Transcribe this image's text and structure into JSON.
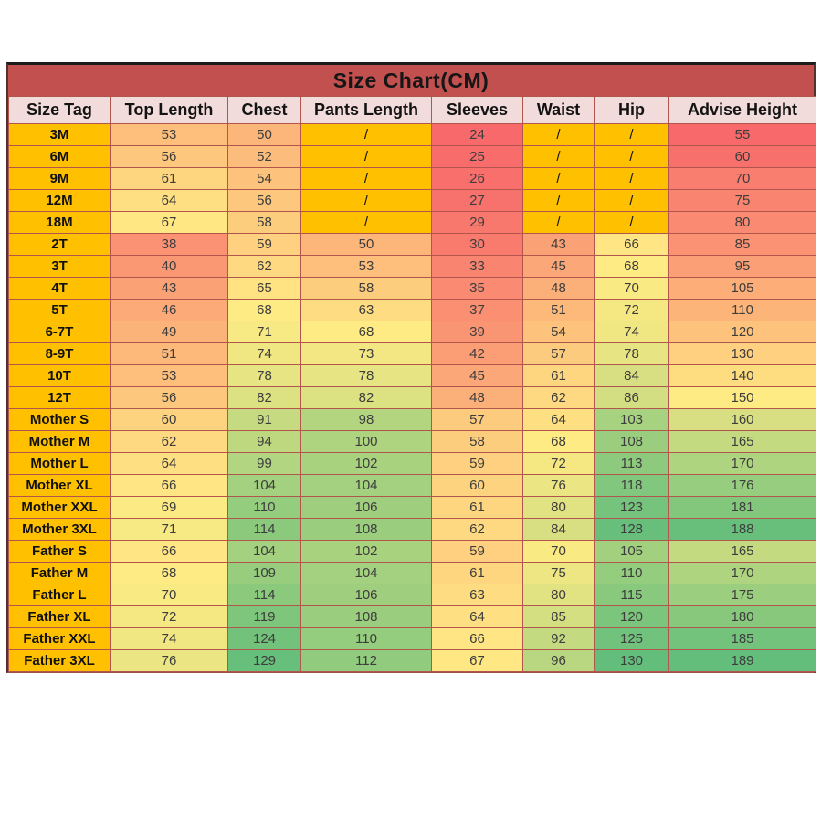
{
  "chart_data": {
    "type": "table",
    "title": "Size Chart(CM)",
    "columns": [
      "Size Tag",
      "Top Length",
      "Chest",
      "Pants Length",
      "Sleeves",
      "Waist",
      "Hip",
      "Advise Height"
    ],
    "rows": [
      [
        "3M",
        "53",
        "50",
        "/",
        "24",
        "/",
        "/",
        "55"
      ],
      [
        "6M",
        "56",
        "52",
        "/",
        "25",
        "/",
        "/",
        "60"
      ],
      [
        "9M",
        "61",
        "54",
        "/",
        "26",
        "/",
        "/",
        "70"
      ],
      [
        "12M",
        "64",
        "56",
        "/",
        "27",
        "/",
        "/",
        "75"
      ],
      [
        "18M",
        "67",
        "58",
        "/",
        "29",
        "/",
        "/",
        "80"
      ],
      [
        "2T",
        "38",
        "59",
        "50",
        "30",
        "43",
        "66",
        "85"
      ],
      [
        "3T",
        "40",
        "62",
        "53",
        "33",
        "45",
        "68",
        "95"
      ],
      [
        "4T",
        "43",
        "65",
        "58",
        "35",
        "48",
        "70",
        "105"
      ],
      [
        "5T",
        "46",
        "68",
        "63",
        "37",
        "51",
        "72",
        "110"
      ],
      [
        "6-7T",
        "49",
        "71",
        "68",
        "39",
        "54",
        "74",
        "120"
      ],
      [
        "8-9T",
        "51",
        "74",
        "73",
        "42",
        "57",
        "78",
        "130"
      ],
      [
        "10T",
        "53",
        "78",
        "78",
        "45",
        "61",
        "84",
        "140"
      ],
      [
        "12T",
        "56",
        "82",
        "82",
        "48",
        "62",
        "86",
        "150"
      ],
      [
        "Mother S",
        "60",
        "91",
        "98",
        "57",
        "64",
        "103",
        "160"
      ],
      [
        "Mother M",
        "62",
        "94",
        "100",
        "58",
        "68",
        "108",
        "165"
      ],
      [
        "Mother L",
        "64",
        "99",
        "102",
        "59",
        "72",
        "113",
        "170"
      ],
      [
        "Mother XL",
        "66",
        "104",
        "104",
        "60",
        "76",
        "118",
        "176"
      ],
      [
        "Mother XXL",
        "69",
        "110",
        "106",
        "61",
        "80",
        "123",
        "181"
      ],
      [
        "Mother 3XL",
        "71",
        "114",
        "108",
        "62",
        "84",
        "128",
        "188"
      ],
      [
        "Father S",
        "66",
        "104",
        "102",
        "59",
        "70",
        "105",
        "165"
      ],
      [
        "Father M",
        "68",
        "109",
        "104",
        "61",
        "75",
        "110",
        "170"
      ],
      [
        "Father L",
        "70",
        "114",
        "106",
        "63",
        "80",
        "115",
        "175"
      ],
      [
        "Father XL",
        "72",
        "119",
        "108",
        "64",
        "85",
        "120",
        "180"
      ],
      [
        "Father XXL",
        "74",
        "124",
        "110",
        "66",
        "92",
        "125",
        "185"
      ],
      [
        "Father 3XL",
        "76",
        "129",
        "112",
        "67",
        "96",
        "130",
        "189"
      ]
    ]
  },
  "style": {
    "title_bg": "#C1504E",
    "title_text": "#161616",
    "header_bg": "#F2DCDB",
    "header_text": "#131313",
    "size_tag_bg": "#FFC000",
    "size_tag_text": "#111111",
    "slash_bg": "#FFC000",
    "value_text": "#3D3D3D",
    "grid_line": "#B2564D",
    "color_scale": {
      "min_color": "#F8696B",
      "mid_color": "#FFEB84",
      "max_color": "#63BE7B",
      "body_columns_domain": [
        24,
        68,
        130
      ],
      "advise_height_domain": [
        55,
        150,
        189
      ]
    }
  }
}
